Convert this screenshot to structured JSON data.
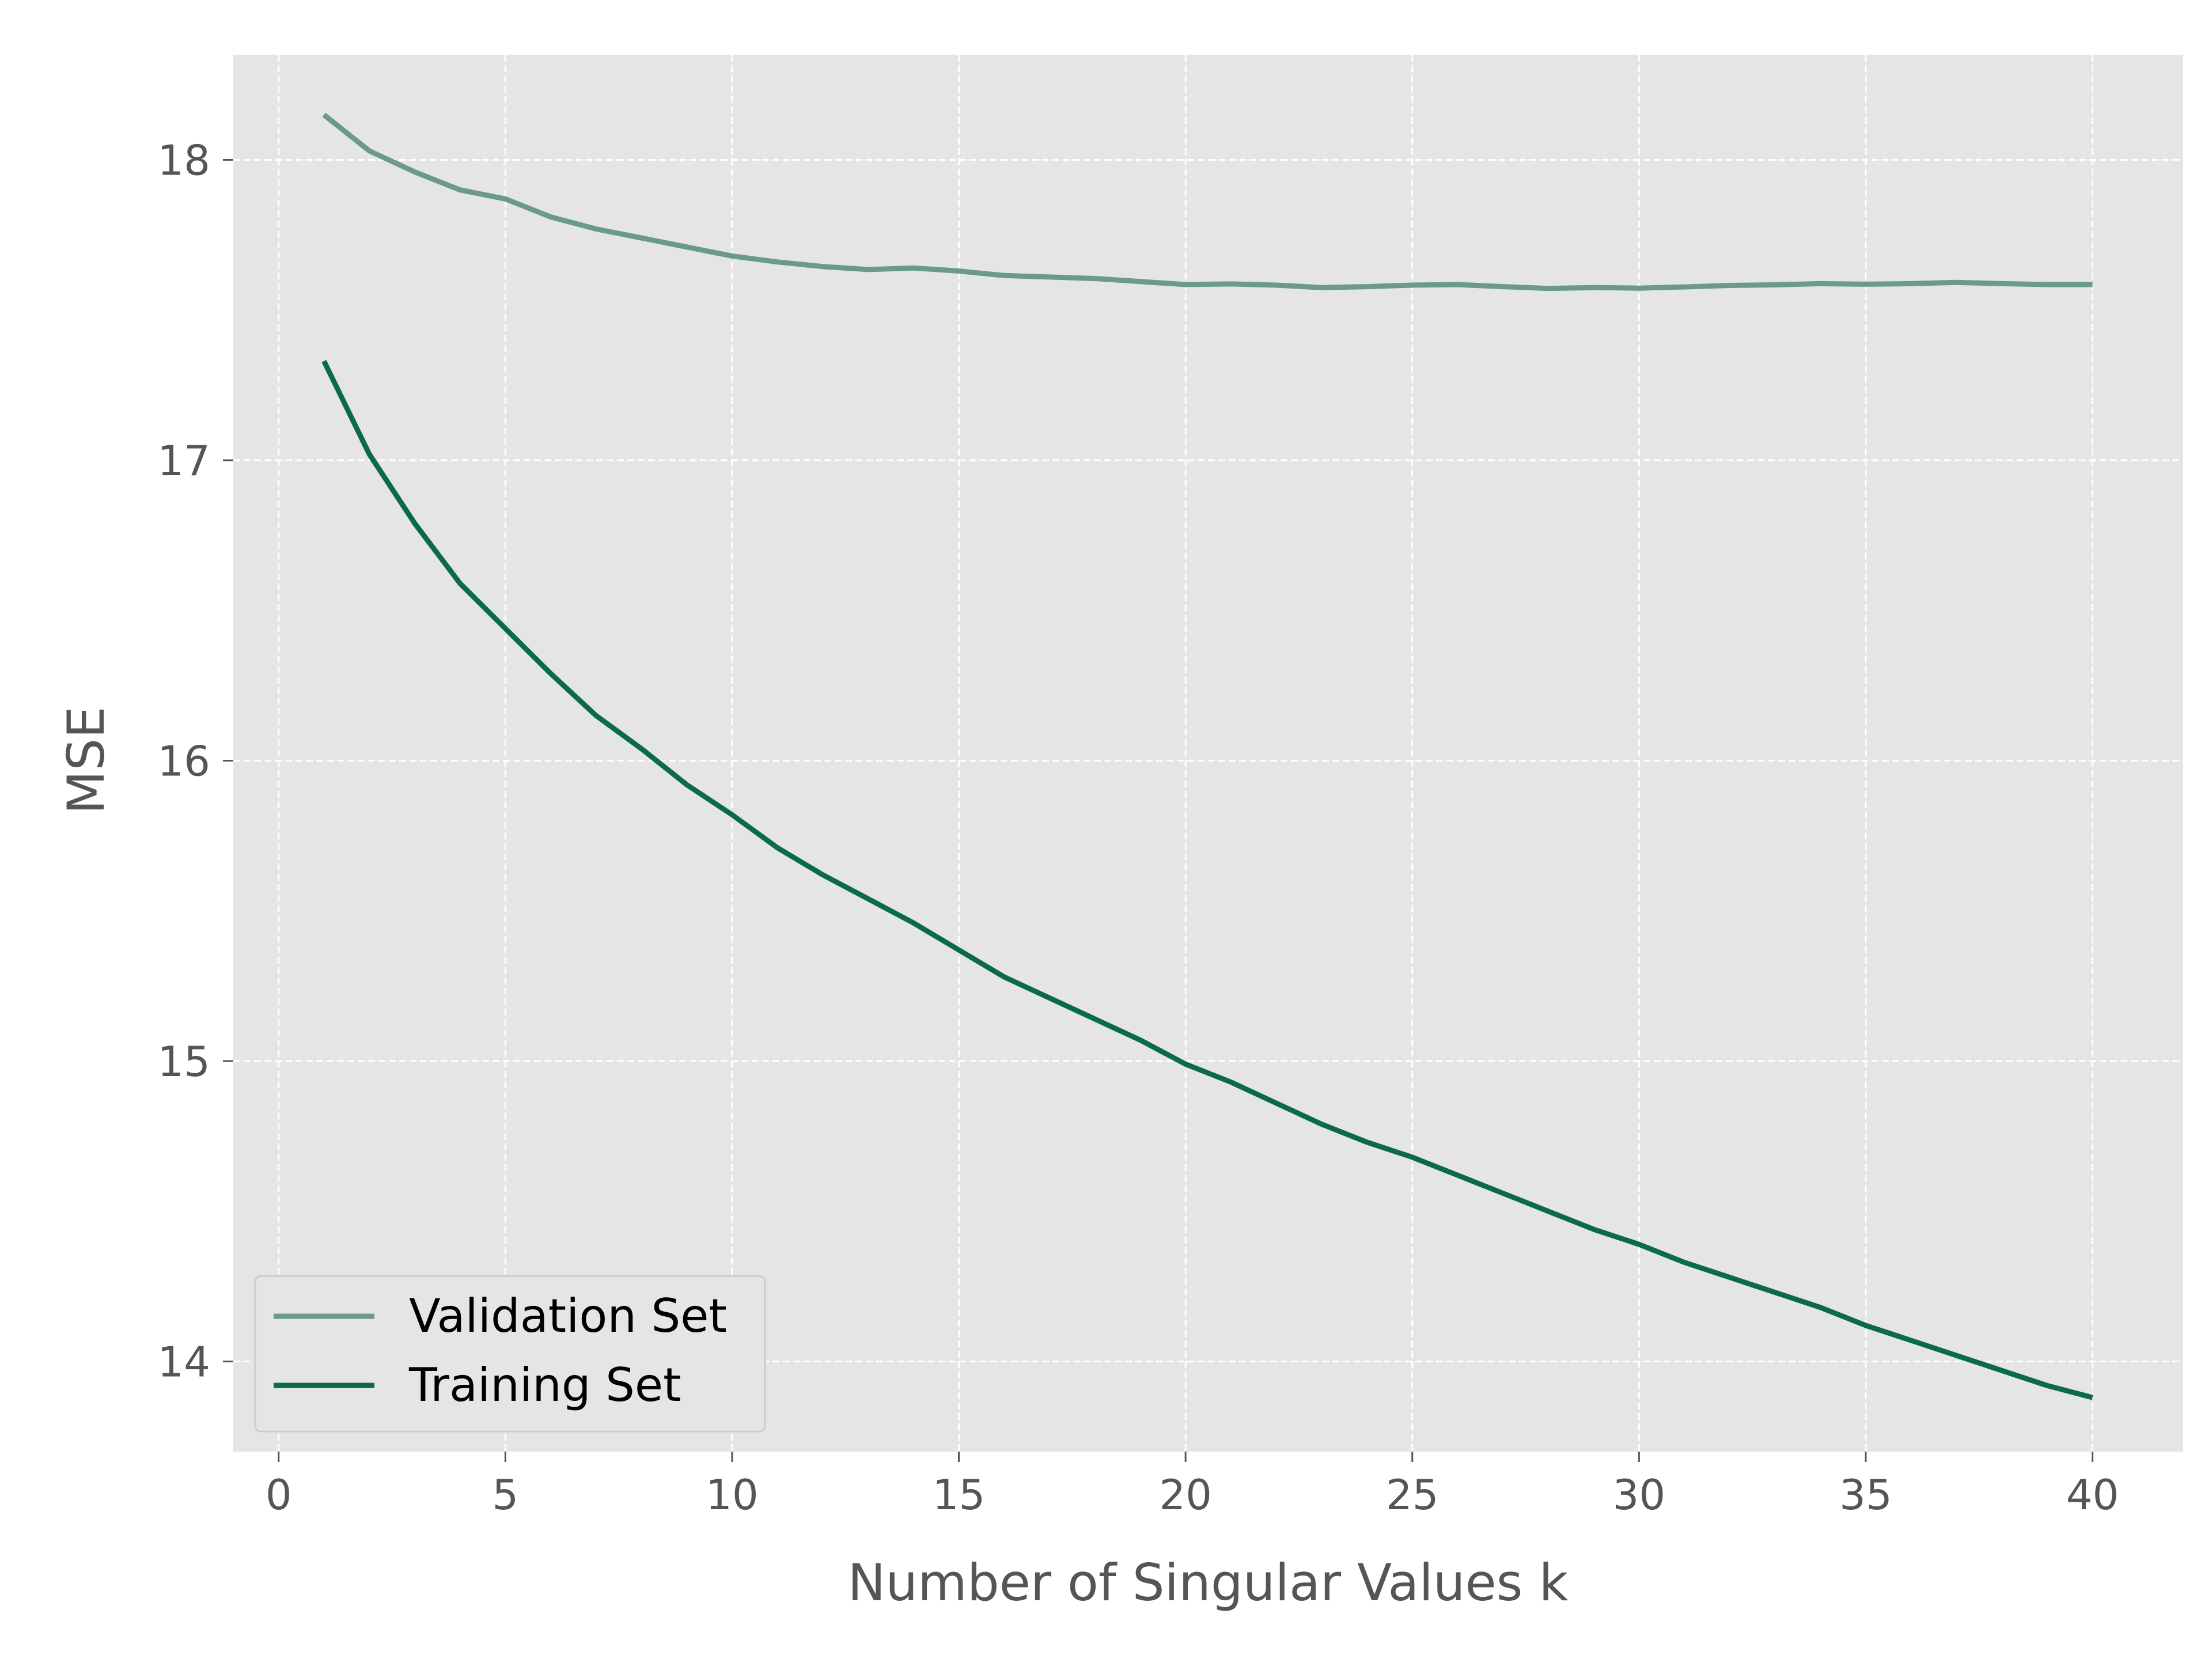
{
  "chart_data": {
    "type": "line",
    "title": "",
    "xlabel": "Number of Singular Values k",
    "ylabel": "MSE",
    "xlim": [
      -1.0,
      42.0
    ],
    "ylim": [
      13.7,
      18.35
    ],
    "x_ticks": [
      0,
      5,
      10,
      15,
      20,
      25,
      30,
      35,
      40
    ],
    "y_ticks": [
      14,
      15,
      16,
      17,
      18
    ],
    "grid": true,
    "legend_position": "lower-left",
    "colors": {
      "background": "#e5e5e5",
      "grid": "#ffffff",
      "tick": "#555555"
    },
    "x": [
      1,
      2,
      3,
      4,
      5,
      6,
      7,
      8,
      9,
      10,
      11,
      12,
      13,
      14,
      15,
      16,
      17,
      18,
      19,
      20,
      21,
      22,
      23,
      24,
      25,
      26,
      27,
      28,
      29,
      30,
      31,
      32,
      33,
      34,
      35,
      36,
      37,
      38,
      39,
      40
    ],
    "series": [
      {
        "name": "Validation Set",
        "color": "#6a9a88",
        "values": [
          18.15,
          18.03,
          17.96,
          17.9,
          17.87,
          17.81,
          17.77,
          17.74,
          17.71,
          17.68,
          17.66,
          17.645,
          17.635,
          17.64,
          17.63,
          17.615,
          17.61,
          17.605,
          17.595,
          17.585,
          17.587,
          17.583,
          17.575,
          17.578,
          17.583,
          17.585,
          17.578,
          17.572,
          17.575,
          17.573,
          17.577,
          17.582,
          17.584,
          17.588,
          17.586,
          17.588,
          17.592,
          17.588,
          17.585,
          17.585
        ]
      },
      {
        "name": "Training Set",
        "color": "#0b6b48",
        "values": [
          17.33,
          17.02,
          16.79,
          16.59,
          16.44,
          16.29,
          16.15,
          16.04,
          15.92,
          15.82,
          15.71,
          15.62,
          15.54,
          15.46,
          15.37,
          15.28,
          15.21,
          15.14,
          15.07,
          14.99,
          14.93,
          14.86,
          14.79,
          14.73,
          14.68,
          14.62,
          14.56,
          14.5,
          14.44,
          14.39,
          14.33,
          14.28,
          14.23,
          14.18,
          14.12,
          14.07,
          14.02,
          13.97,
          13.92,
          13.88
        ]
      }
    ]
  }
}
